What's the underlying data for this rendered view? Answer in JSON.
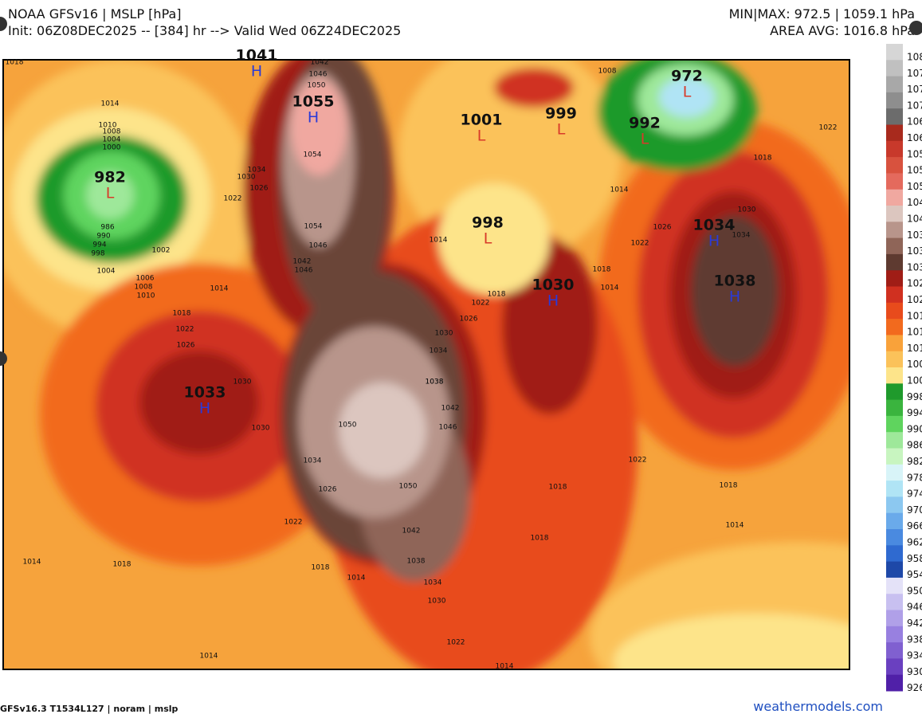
{
  "header": {
    "title": "NOAA GFSv16 | MSLP [hPa]",
    "subtitle": "Init: 06Z08DEC2025 -- [384] hr --> Valid Wed 06Z24DEC2025",
    "minmax": "MIN|MAX: 972.5 | 1059.1 hPa",
    "area_avg": "AREA AVG: 1016.8 hPa"
  },
  "centers": [
    {
      "value": "1041",
      "mark": "H"
    },
    {
      "value": "1055",
      "mark": "H"
    },
    {
      "value": "982",
      "mark": "L"
    },
    {
      "value": "1001",
      "mark": "L"
    },
    {
      "value": "999",
      "mark": "L"
    },
    {
      "value": "972",
      "mark": "L"
    },
    {
      "value": "992",
      "mark": "L"
    },
    {
      "value": "998",
      "mark": "L"
    },
    {
      "value": "1034",
      "mark": "H"
    },
    {
      "value": "1038",
      "mark": "H"
    },
    {
      "value": "1030",
      "mark": "H"
    },
    {
      "value": "1033",
      "mark": "H"
    }
  ],
  "contour_labels": [
    "1018",
    "1014",
    "1010",
    "1008",
    "1004",
    "1000",
    "986",
    "990",
    "994",
    "998",
    "1002",
    "1004",
    "1006",
    "1008",
    "1010",
    "1014",
    "1018",
    "1022",
    "1026",
    "1030",
    "1030",
    "1034",
    "1026",
    "1022",
    "1018",
    "1014",
    "1014",
    "1018",
    "1014",
    "1014",
    "1022",
    "1030",
    "1034",
    "1038",
    "1042",
    "1050",
    "1050",
    "1046",
    "1042",
    "1038",
    "1034",
    "1030",
    "1026",
    "1022",
    "1018",
    "1014",
    "1018",
    "1014",
    "1022",
    "1026",
    "1030",
    "1034",
    "1022",
    "1018",
    "1014",
    "1018",
    "1018",
    "1014",
    "1018",
    "1022",
    "1042",
    "1046",
    "1050",
    "1054",
    "1054",
    "1046",
    "1042",
    "1046",
    "1034",
    "1030",
    "1026",
    "1022",
    "1038",
    "1008"
  ],
  "colorbar": [
    {
      "label": "108",
      "color": "#d6d6d6"
    },
    {
      "label": "107",
      "color": "#c0c0c0"
    },
    {
      "label": "107",
      "color": "#a8a8a8"
    },
    {
      "label": "107",
      "color": "#8e8e8e"
    },
    {
      "label": "106",
      "color": "#6c6c6c"
    },
    {
      "label": "106",
      "color": "#a82a1d"
    },
    {
      "label": "105",
      "color": "#c8392b"
    },
    {
      "label": "105",
      "color": "#d8523e"
    },
    {
      "label": "105",
      "color": "#e46a5d"
    },
    {
      "label": "104",
      "color": "#f0a8a0"
    },
    {
      "label": "104",
      "color": "#dcc6bf"
    },
    {
      "label": "103",
      "color": "#b8958b"
    },
    {
      "label": "103",
      "color": "#8f6558"
    },
    {
      "label": "103",
      "color": "#5e3a30"
    },
    {
      "label": "102",
      "color": "#a01d16"
    },
    {
      "label": "102",
      "color": "#d03020"
    },
    {
      "label": "101",
      "color": "#e84b1c"
    },
    {
      "label": "101",
      "color": "#f26a1e"
    },
    {
      "label": "101",
      "color": "#f9a23a"
    },
    {
      "label": "100",
      "color": "#fbc25a"
    },
    {
      "label": "100",
      "color": "#fde48a"
    },
    {
      "label": "998",
      "color": "#1f9a2c"
    },
    {
      "label": "994",
      "color": "#3ab43e"
    },
    {
      "label": "990",
      "color": "#5fd45e"
    },
    {
      "label": "986",
      "color": "#9ee89a"
    },
    {
      "label": "982",
      "color": "#c8f5c0"
    },
    {
      "label": "978",
      "color": "#d8f4f8"
    },
    {
      "label": "974",
      "color": "#b0e4f5"
    },
    {
      "label": "970",
      "color": "#8cc8f0"
    },
    {
      "label": "966",
      "color": "#6aaaea"
    },
    {
      "label": "962",
      "color": "#4a8ae0"
    },
    {
      "label": "958",
      "color": "#2f6ad0"
    },
    {
      "label": "954",
      "color": "#1e48a8"
    },
    {
      "label": "950",
      "color": "#e4e2f8"
    },
    {
      "label": "946",
      "color": "#c8c0f0"
    },
    {
      "label": "942",
      "color": "#b0a0e8"
    },
    {
      "label": "938",
      "color": "#9880e0"
    },
    {
      "label": "934",
      "color": "#8060d0"
    },
    {
      "label": "930",
      "color": "#6a40c0"
    },
    {
      "label": "926",
      "color": "#5020a8"
    }
  ],
  "footer": {
    "model": "GFSv16.3 T1534L127 | noram | mslp",
    "site": "weathermodels.com"
  }
}
